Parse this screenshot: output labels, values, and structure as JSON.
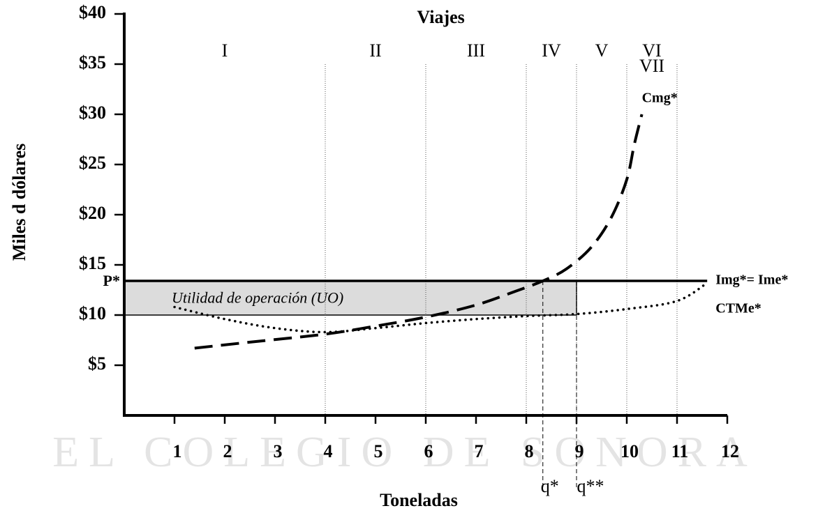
{
  "chart_data": {
    "type": "line",
    "x_label": "Toneladas",
    "y_label": "Miles d dólares",
    "watermark": "EL COLEGIO DE SONORA",
    "xlim": [
      0,
      12
    ],
    "ylim": [
      0,
      40
    ],
    "xticks": [
      1,
      2,
      3,
      4,
      5,
      6,
      7,
      8,
      9,
      10,
      11,
      12
    ],
    "yticks": [
      {
        "value": 5,
        "label": "$5"
      },
      {
        "value": 10,
        "label": "$10"
      },
      {
        "value": 15,
        "label": "$15"
      },
      {
        "value": 20,
        "label": "$20"
      },
      {
        "value": 25,
        "label": "$25"
      },
      {
        "value": 30,
        "label": "$30"
      },
      {
        "value": 35,
        "label": "$35"
      },
      {
        "value": 40,
        "label": "$40"
      }
    ],
    "stages": {
      "title": "Viajes",
      "labels": [
        "I",
        "II",
        "III",
        "IV",
        "V",
        "VI",
        "VII"
      ],
      "x": [
        2,
        5,
        7,
        8.5,
        9.5,
        10.5,
        10.5
      ],
      "boundaries": [
        4,
        6,
        8,
        9,
        10,
        11
      ]
    },
    "series": [
      {
        "name": "Cmg*",
        "color": "#000000",
        "style": "dashed",
        "x": [
          1.4,
          2.5,
          4,
          5,
          6,
          7,
          7.8,
          8.33,
          8.8,
          9.3,
          9.7,
          10,
          10.15,
          10.3
        ],
        "values": [
          6.7,
          7.3,
          8.1,
          8.9,
          9.8,
          11.0,
          12.4,
          13.4,
          14.6,
          16.8,
          19.8,
          23.5,
          27,
          30
        ]
      },
      {
        "name": "CTMe*",
        "color": "#000000",
        "style": "dotted",
        "x": [
          1,
          2,
          3,
          4,
          5,
          6,
          7,
          8,
          9,
          10,
          11,
          11.6
        ],
        "values": [
          10.8,
          9.6,
          8.7,
          8.3,
          8.7,
          9.2,
          9.6,
          9.9,
          10.1,
          10.6,
          11.4,
          13.2
        ]
      }
    ],
    "price": {
      "label": "P*",
      "name": "Img*= Ime*",
      "value": 13.4,
      "xlim": [
        0,
        11.6
      ]
    },
    "profit": {
      "label": "Utilidad de operación (UO)",
      "x": [
        0,
        9
      ],
      "y": [
        10,
        13.4
      ],
      "color": "#dcdcdc"
    },
    "quantities": [
      {
        "label": "q*",
        "value": 8.33
      },
      {
        "label": "q**",
        "value": 9
      }
    ]
  }
}
